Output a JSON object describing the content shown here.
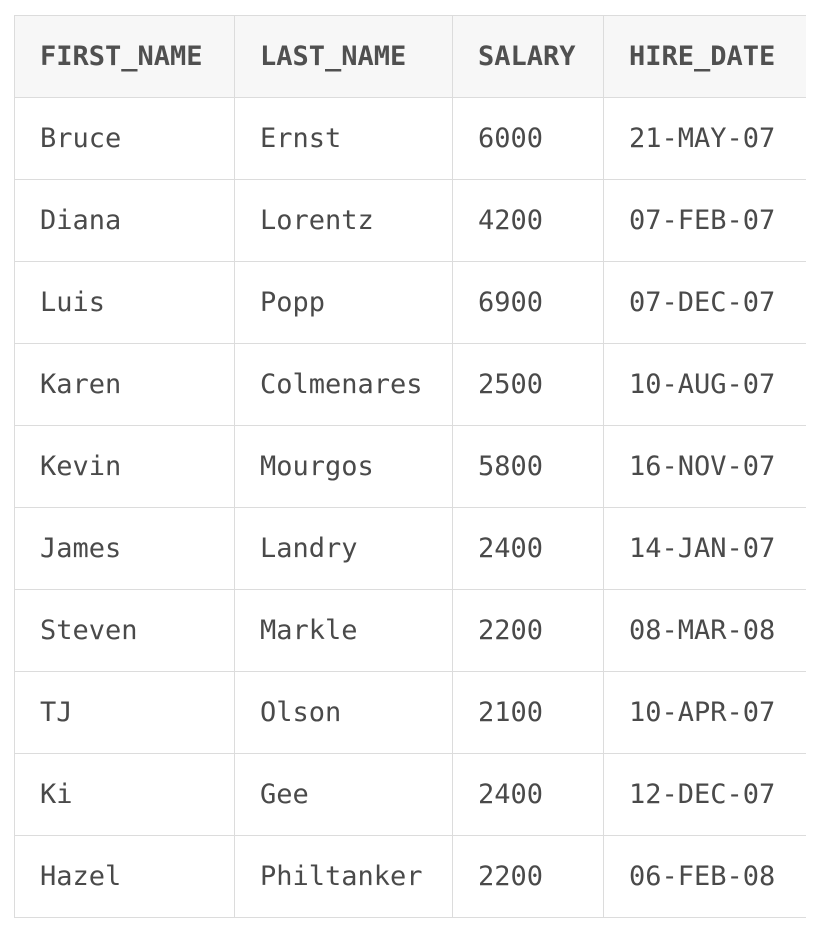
{
  "table": {
    "headers": [
      "FIRST_NAME",
      "LAST_NAME",
      "SALARY",
      "HIRE_DATE"
    ],
    "rows": [
      [
        "Bruce",
        "Ernst",
        "6000",
        "21-MAY-07"
      ],
      [
        "Diana",
        "Lorentz",
        "4200",
        "07-FEB-07"
      ],
      [
        "Luis",
        "Popp",
        "6900",
        "07-DEC-07"
      ],
      [
        "Karen",
        "Colmenares",
        "2500",
        "10-AUG-07"
      ],
      [
        "Kevin",
        "Mourgos",
        "5800",
        "16-NOV-07"
      ],
      [
        "James",
        "Landry",
        "2400",
        "14-JAN-07"
      ],
      [
        "Steven",
        "Markle",
        "2200",
        "08-MAR-08"
      ],
      [
        "TJ",
        "Olson",
        "2100",
        "10-APR-07"
      ],
      [
        "Ki",
        "Gee",
        "2400",
        "12-DEC-07"
      ],
      [
        "Hazel",
        "Philtanker",
        "2200",
        "06-FEB-08"
      ]
    ]
  }
}
